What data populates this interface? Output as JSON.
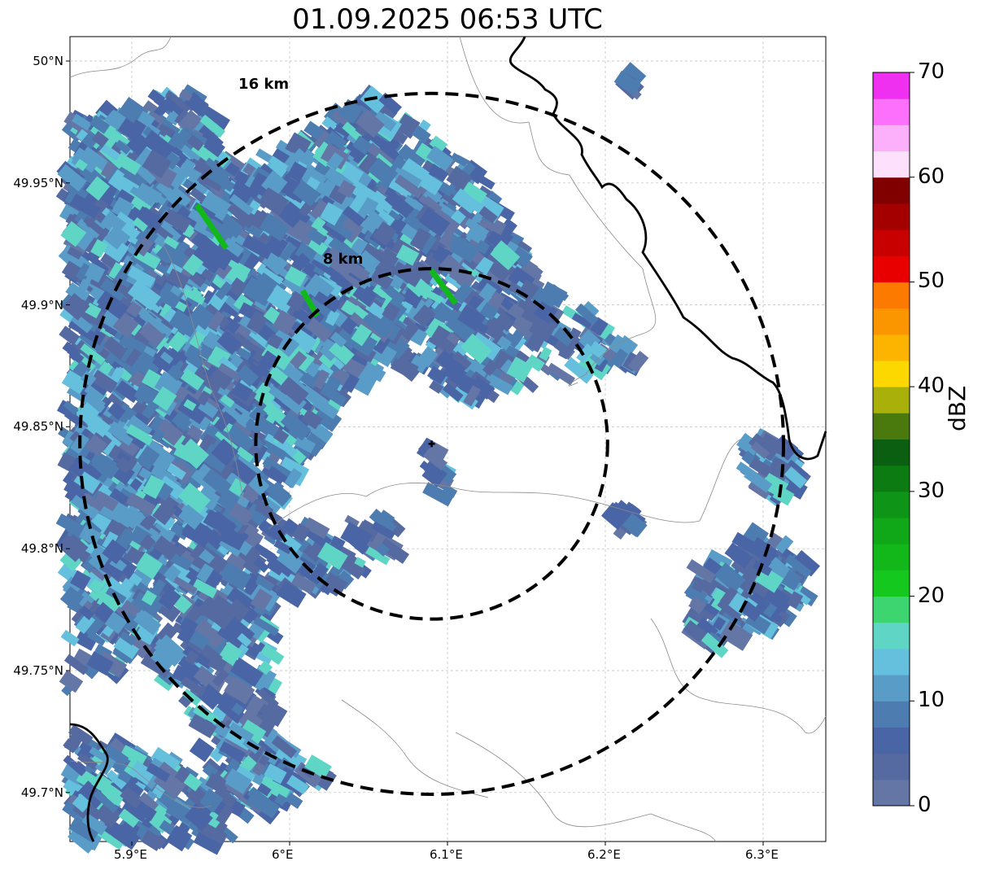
{
  "title": "01.09.2025 06:53 UTC",
  "map": {
    "lon_ticks": [
      "5.9°E",
      "6°E",
      "6.1°E",
      "6.2°E",
      "6.3°E"
    ],
    "lat_ticks": [
      "50°N",
      "49.95°N",
      "49.9°N",
      "49.85°N",
      "49.8°N",
      "49.75°N",
      "49.7°N"
    ],
    "lon_range": [
      5.86,
      6.34
    ],
    "lat_range": [
      49.68,
      50.01
    ],
    "radar_site": {
      "lon": 6.09,
      "lat": 49.843
    },
    "range_rings": [
      {
        "label": "8 km",
        "radius_km": 8
      },
      {
        "label": "16 km",
        "radius_km": 16
      }
    ]
  },
  "colorbar": {
    "label": "dBZ",
    "ticks": [
      "0",
      "10",
      "20",
      "30",
      "40",
      "50",
      "60",
      "70"
    ],
    "vmin": 0,
    "vmax": 70,
    "colors": [
      "#6476a6",
      "#566aa2",
      "#4a65a5",
      "#4d7cb0",
      "#5a9cc8",
      "#64c0dc",
      "#5fd6c5",
      "#3dd570",
      "#14c81e",
      "#12b81a",
      "#10a818",
      "#0e9416",
      "#0c7c12",
      "#0a6010",
      "#4a7a0e",
      "#aab00a",
      "#fcd800",
      "#fcb400",
      "#fc9600",
      "#fc7a00",
      "#e80000",
      "#c80000",
      "#a40000",
      "#800000",
      "#fce0fc",
      "#fcb0fc",
      "#fc70fc",
      "#f030f0"
    ]
  }
}
